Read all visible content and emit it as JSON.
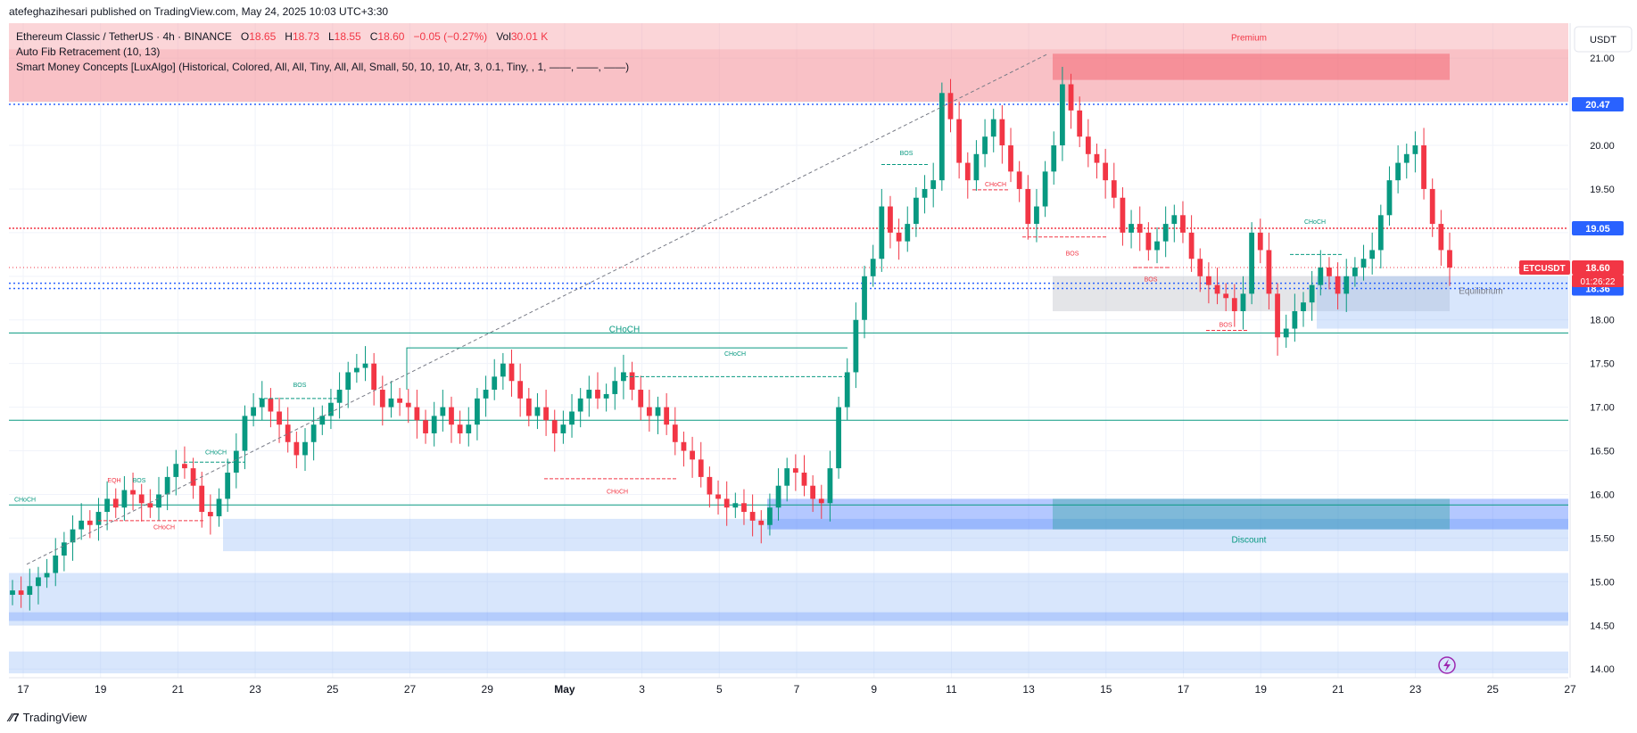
{
  "header": {
    "attribution": "atefeghazihesari published on TradingView.com, May 24, 2025 10:03 UTC+3:30"
  },
  "legend": {
    "symbol": "Ethereum Classic / TetherUS · 4h · BINANCE",
    "o_label": "O",
    "o_value": "18.65",
    "h_label": "H",
    "h_value": "18.73",
    "l_label": "L",
    "l_value": "18.55",
    "c_label": "C",
    "c_value": "18.60",
    "change": "−0.05 (−0.27%)",
    "vol_label": "Vol",
    "vol_value": "30.01 K",
    "indicator_1": "Auto Fib Retracement (10, 13)",
    "indicator_2": "Smart Money Concepts [LuxAlgo] (Historical, Colored, All, All, Tiny, All, All, Small, 50, 10, 10, Atr, 3, 0.1, Tiny, , 1, ——, ——, ——)"
  },
  "footer": {
    "brand": "TradingView"
  },
  "colors": {
    "up": "#089981",
    "down": "#f23645",
    "premium_zone": "#f7a1a8",
    "discount_zone": "#8fb6f7",
    "blue_label": "#2962ff",
    "red_label": "#f23645",
    "text": "#131722"
  },
  "chart_data": {
    "type": "candlestick",
    "symbol": "ETCUSDT",
    "currency": "USDT",
    "ylim": [
      13.9,
      21.4
    ],
    "y_ticks": [
      "14.00",
      "14.50",
      "15.00",
      "15.50",
      "16.00",
      "16.50",
      "17.00",
      "17.50",
      "18.00",
      "19.50",
      "20.00",
      "21.00"
    ],
    "x_tick_labels": [
      "17",
      "19",
      "21",
      "23",
      "25",
      "27",
      "29",
      "May",
      "3",
      "5",
      "7",
      "9",
      "11",
      "13",
      "15",
      "17",
      "19",
      "21",
      "23",
      "25",
      "27"
    ],
    "price_labels": [
      {
        "id": "fib-top",
        "text": "20.47",
        "value": 20.47,
        "color": "#2962ff"
      },
      {
        "id": "red-level",
        "text": "19.05",
        "value": 19.05,
        "color": "#2962ff"
      },
      {
        "id": "last",
        "text": "18.60",
        "value": 18.6,
        "color": "#f23645"
      },
      {
        "id": "eq-1",
        "text": "18.42",
        "value": 18.42,
        "color": "#2962ff"
      },
      {
        "id": "eq-2",
        "text": "18.36",
        "value": 18.36,
        "color": "#2962ff"
      }
    ],
    "last_price": {
      "ticker": "ETCUSDT",
      "value": "18.60",
      "countdown": "01:26:22"
    },
    "zones": [
      {
        "name": "Premium",
        "from": 20.5,
        "to": 21.15
      },
      {
        "name": "Discount",
        "from": 15.35,
        "to": 15.95
      },
      {
        "name": "Equilibrium",
        "from": 18.1,
        "to": 18.5
      }
    ],
    "structure_labels": [
      {
        "text": "CHoCH"
      },
      {
        "text": "EQH"
      },
      {
        "text": "BOS"
      },
      {
        "text": "CHoCH"
      },
      {
        "text": "CHoCH"
      },
      {
        "text": "BOS"
      },
      {
        "text": "CHoCH"
      },
      {
        "text": "CHoCH"
      },
      {
        "text": "CHoCH"
      },
      {
        "text": "BOS"
      },
      {
        "text": "CHoCH"
      },
      {
        "text": "BOS"
      },
      {
        "text": "BOS"
      },
      {
        "text": "BOS"
      },
      {
        "text": "CHoCH"
      }
    ],
    "closes": [
      14.9,
      14.85,
      14.95,
      15.05,
      15.1,
      15.3,
      15.45,
      15.6,
      15.7,
      15.65,
      15.8,
      15.95,
      15.85,
      16.05,
      16.0,
      15.9,
      15.85,
      16.0,
      16.2,
      16.35,
      16.3,
      16.1,
      15.8,
      15.75,
      15.95,
      16.25,
      16.5,
      16.9,
      17.0,
      17.1,
      16.95,
      16.8,
      16.6,
      16.45,
      16.6,
      16.8,
      16.9,
      17.05,
      17.2,
      17.4,
      17.45,
      17.5,
      17.2,
      17.0,
      17.1,
      17.05,
      17.0,
      16.85,
      16.7,
      16.9,
      17.0,
      16.8,
      16.7,
      16.8,
      17.1,
      17.2,
      17.35,
      17.5,
      17.3,
      17.1,
      16.9,
      17.0,
      16.85,
      16.7,
      16.8,
      16.95,
      17.1,
      17.2,
      17.1,
      17.15,
      17.3,
      17.4,
      17.2,
      17.0,
      16.9,
      17.0,
      16.8,
      16.6,
      16.5,
      16.4,
      16.2,
      16.0,
      15.95,
      15.85,
      15.9,
      15.8,
      15.7,
      15.65,
      15.85,
      16.1,
      16.3,
      16.25,
      16.1,
      15.95,
      15.9,
      16.3,
      17.0,
      17.4,
      18.0,
      18.5,
      18.7,
      19.3,
      19.0,
      18.9,
      19.1,
      19.4,
      19.5,
      19.6,
      20.6,
      20.3,
      19.8,
      19.6,
      19.9,
      20.1,
      20.3,
      20.0,
      19.7,
      19.5,
      19.1,
      19.3,
      19.7,
      20.0,
      20.7,
      20.4,
      20.1,
      19.9,
      19.8,
      19.6,
      19.4,
      19.0,
      19.1,
      19.0,
      18.8,
      18.9,
      19.1,
      19.2,
      19.0,
      18.7,
      18.5,
      18.4,
      18.3,
      18.25,
      18.1,
      18.3,
      19.0,
      18.8,
      18.3,
      17.8,
      17.9,
      18.1,
      18.2,
      18.4,
      18.6,
      18.5,
      18.3,
      18.5,
      18.6,
      18.7,
      18.8,
      19.2,
      19.6,
      19.8,
      19.9,
      20.0,
      19.5,
      19.1,
      18.8,
      18.6
    ]
  }
}
